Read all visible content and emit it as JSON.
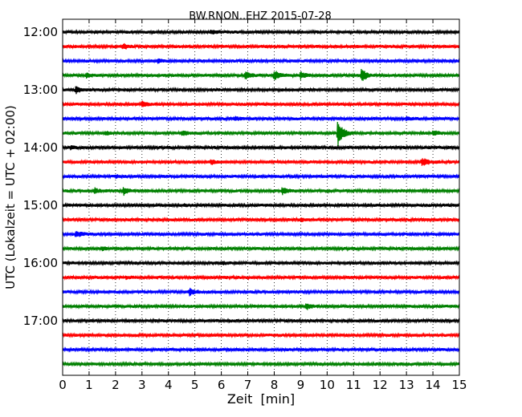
{
  "chart_data": {
    "type": "line",
    "title": "BW.RNON..EHZ 2015-07-28",
    "xlabel": "Zeit  [min]",
    "ylabel": "UTC (Lokalzeit = UTC + 02:00)",
    "xlim": [
      0,
      15
    ],
    "x_ticks": [
      "0",
      "1",
      "2",
      "3",
      "4",
      "5",
      "6",
      "7",
      "8",
      "9",
      "10",
      "11",
      "12",
      "13",
      "14",
      "15"
    ],
    "y_ticks": [
      "12:00",
      "13:00",
      "14:00",
      "15:00",
      "16:00",
      "17:00"
    ],
    "grid": "vertical dotted",
    "trace_colors": [
      "#000000",
      "#ff0000",
      "#0000ff",
      "#008000"
    ],
    "traces": [
      {
        "start": "12:00",
        "events": [
          {
            "t": 5.6,
            "amp": 0.15
          }
        ]
      },
      {
        "start": "12:15",
        "events": [
          {
            "t": 2.3,
            "amp": 0.2
          }
        ]
      },
      {
        "start": "12:30",
        "events": [
          {
            "t": 3.6,
            "amp": 0.15
          }
        ]
      },
      {
        "start": "12:45",
        "events": [
          {
            "t": 0.9,
            "amp": 0.2
          },
          {
            "t": 6.9,
            "amp": 0.3
          },
          {
            "t": 8.0,
            "amp": 0.45
          },
          {
            "t": 9.0,
            "amp": 0.3
          },
          {
            "t": 11.3,
            "amp": 0.55
          }
        ]
      },
      {
        "start": "13:00",
        "events": [
          {
            "t": 0.5,
            "amp": 0.3
          }
        ]
      },
      {
        "start": "13:15",
        "events": [
          {
            "t": 3.0,
            "amp": 0.25
          }
        ]
      },
      {
        "start": "13:30",
        "events": [
          {
            "t": 6.5,
            "amp": 0.15
          },
          {
            "t": 13.0,
            "amp": 0.15
          }
        ]
      },
      {
        "start": "13:45",
        "events": [
          {
            "t": 1.6,
            "amp": 0.15
          },
          {
            "t": 4.5,
            "amp": 0.2
          },
          {
            "t": 10.4,
            "amp": 1.2
          },
          {
            "t": 14.0,
            "amp": 0.2
          }
        ]
      },
      {
        "start": "14:00",
        "events": [
          {
            "t": 0.3,
            "amp": 0.1
          }
        ]
      },
      {
        "start": "14:15",
        "events": [
          {
            "t": 5.6,
            "amp": 0.2
          },
          {
            "t": 13.6,
            "amp": 0.35
          }
        ]
      },
      {
        "start": "14:30",
        "events": [
          {
            "t": 2.0,
            "amp": 0.1
          }
        ]
      },
      {
        "start": "14:45",
        "events": [
          {
            "t": 1.2,
            "amp": 0.2
          },
          {
            "t": 2.3,
            "amp": 0.35
          },
          {
            "t": 8.3,
            "amp": 0.3
          }
        ]
      },
      {
        "start": "15:00",
        "events": [
          {
            "t": 4.6,
            "amp": 0.1
          }
        ]
      },
      {
        "start": "15:15",
        "events": [
          {
            "t": 9.0,
            "amp": 0.1
          }
        ]
      },
      {
        "start": "15:30",
        "events": [
          {
            "t": 0.5,
            "amp": 0.3
          }
        ]
      },
      {
        "start": "15:45",
        "events": [
          {
            "t": 1.5,
            "amp": 0.1
          }
        ]
      },
      {
        "start": "16:00",
        "events": [
          {
            "t": 6.0,
            "amp": 0.1
          }
        ]
      },
      {
        "start": "16:15",
        "events": [
          {
            "t": 2.4,
            "amp": 0.1
          }
        ]
      },
      {
        "start": "16:30",
        "events": [
          {
            "t": 4.8,
            "amp": 0.3
          }
        ]
      },
      {
        "start": "16:45",
        "events": [
          {
            "t": 9.2,
            "amp": 0.3
          }
        ]
      },
      {
        "start": "17:00",
        "events": []
      },
      {
        "start": "17:15",
        "events": []
      },
      {
        "start": "17:30",
        "events": []
      },
      {
        "start": "17:45",
        "events": []
      }
    ]
  }
}
